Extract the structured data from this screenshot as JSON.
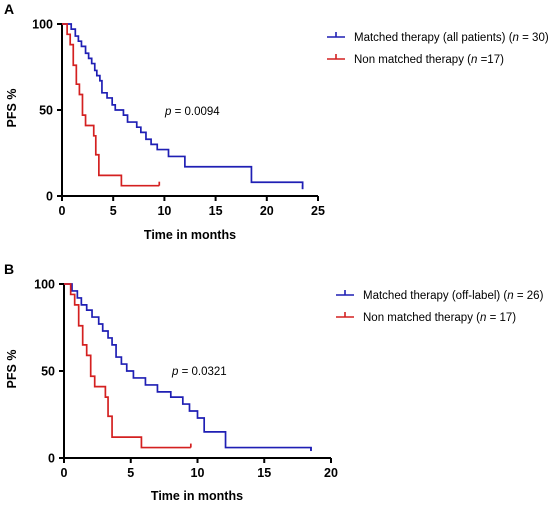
{
  "chart_data": [
    {
      "type": "line",
      "panel_label": "A",
      "xlabel": "Time in months",
      "ylabel": "PFS %",
      "xlim": [
        0,
        25
      ],
      "ylim": [
        0,
        100
      ],
      "x_ticks": [
        "0",
        "5",
        "10",
        "15",
        "20",
        "25"
      ],
      "y_ticks": [
        "0",
        "50",
        "100"
      ],
      "p_value": {
        "label": "p",
        "value": " = 0.0094"
      },
      "series": [
        {
          "name": "Matched therapy (all patients)",
          "n_label": "n",
          "n_value": " = 30",
          "color": "#1f1fb4",
          "steps": [
            [
              0,
              100
            ],
            [
              0.5,
              100
            ],
            [
              0.9,
              97
            ],
            [
              1.3,
              93
            ],
            [
              1.6,
              90
            ],
            [
              1.9,
              87
            ],
            [
              2.3,
              83
            ],
            [
              2.6,
              80
            ],
            [
              2.9,
              77
            ],
            [
              3.2,
              73
            ],
            [
              3.4,
              70
            ],
            [
              3.7,
              67
            ],
            [
              3.9,
              60
            ],
            [
              4.4,
              57
            ],
            [
              4.9,
              53
            ],
            [
              5.2,
              50
            ],
            [
              6,
              47
            ],
            [
              6.4,
              43
            ],
            [
              7.3,
              40
            ],
            [
              7.7,
              37
            ],
            [
              8.2,
              33
            ],
            [
              8.7,
              30
            ],
            [
              9.3,
              27
            ],
            [
              10.4,
              23
            ],
            [
              12,
              17
            ],
            [
              13,
              17
            ],
            [
              18.5,
              8
            ],
            [
              23.5,
              4
            ]
          ],
          "end": 23.5
        },
        {
          "name": "Non matched therapy",
          "n_label": "n",
          "n_value": " =17",
          "color": "#d42020",
          "steps": [
            [
              0,
              100
            ],
            [
              0.5,
              94
            ],
            [
              0.8,
              88
            ],
            [
              1.1,
              76
            ],
            [
              1.4,
              65
            ],
            [
              1.7,
              59
            ],
            [
              2,
              47
            ],
            [
              2.3,
              41
            ],
            [
              3.1,
              35
            ],
            [
              3.3,
              24
            ],
            [
              3.6,
              12
            ],
            [
              5.8,
              6
            ]
          ],
          "end": 9.5
        }
      ]
    },
    {
      "type": "line",
      "panel_label": "B",
      "xlabel": "Time in months",
      "ylabel": "PFS %",
      "xlim": [
        0,
        20
      ],
      "ylim": [
        0,
        100
      ],
      "x_ticks": [
        "0",
        "5",
        "10",
        "15",
        "20"
      ],
      "y_ticks": [
        "0",
        "50",
        "100"
      ],
      "p_value": {
        "label": "p",
        "value": " = 0.0321"
      },
      "series": [
        {
          "name": "Matched therapy (off-label)",
          "n_label": "n",
          "n_value": " = 26",
          "color": "#1f1fb4",
          "steps": [
            [
              0,
              100
            ],
            [
              0.6,
              96
            ],
            [
              1,
              92
            ],
            [
              1.3,
              88
            ],
            [
              1.7,
              85
            ],
            [
              2.1,
              81
            ],
            [
              2.6,
              77
            ],
            [
              2.9,
              73
            ],
            [
              3.3,
              69
            ],
            [
              3.6,
              65
            ],
            [
              3.9,
              58
            ],
            [
              4.3,
              54
            ],
            [
              4.7,
              50
            ],
            [
              5.2,
              46
            ],
            [
              6.1,
              42
            ],
            [
              7,
              38
            ],
            [
              8,
              35
            ],
            [
              8.9,
              31
            ],
            [
              9.4,
              27
            ],
            [
              10,
              23
            ],
            [
              10.5,
              15
            ],
            [
              12,
              15
            ],
            [
              12.1,
              6
            ],
            [
              18.5,
              4
            ]
          ],
          "end": 18.5
        },
        {
          "name": "Non matched therapy",
          "n_label": "n",
          "n_value": " = 17",
          "color": "#d42020",
          "steps": [
            [
              0,
              100
            ],
            [
              0.5,
              94
            ],
            [
              0.8,
              88
            ],
            [
              1.1,
              76
            ],
            [
              1.4,
              65
            ],
            [
              1.7,
              59
            ],
            [
              2,
              47
            ],
            [
              2.3,
              41
            ],
            [
              3.1,
              35
            ],
            [
              3.3,
              24
            ],
            [
              3.6,
              12
            ],
            [
              5.8,
              6
            ]
          ],
          "end": 9.5
        }
      ]
    }
  ]
}
